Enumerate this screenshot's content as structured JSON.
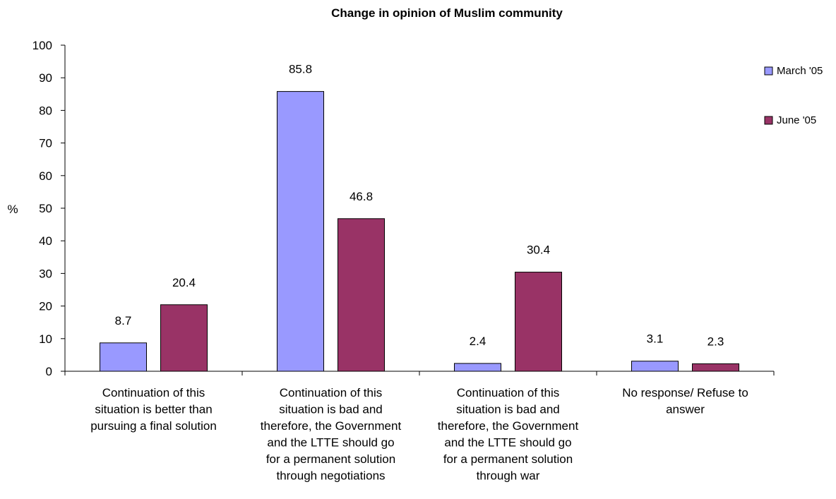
{
  "chart_data": {
    "type": "bar",
    "title": "Change in opinion of Muslim community",
    "ylabel": "%",
    "xlabel": "",
    "ylim": [
      0,
      100
    ],
    "yticks": [
      0,
      10,
      20,
      30,
      40,
      50,
      60,
      70,
      80,
      90,
      100
    ],
    "categories": [
      "Continuation of this situation is better than pursuing a final solution",
      "Continuation of this situation is bad and therefore, the Government and the LTTE should go for a permanent solution through negotiations",
      "Continuation of this situation is bad and therefore, the Government and the LTTE should go for a permanent solution through war",
      "No response/ Refuse to answer"
    ],
    "category_lines": [
      [
        "Continuation of this",
        "situation is better than",
        "pursuing a final solution"
      ],
      [
        "Continuation of this",
        "situation is bad and",
        "therefore, the Government",
        "and the LTTE should go",
        "for a permanent solution",
        "through negotiations"
      ],
      [
        "Continuation of this",
        "situation is bad and",
        "therefore, the Government",
        "and the LTTE should go",
        "for a permanent solution",
        "through war"
      ],
      [
        "No response/ Refuse to",
        "answer"
      ]
    ],
    "series": [
      {
        "name": "March '05",
        "values": [
          8.7,
          85.8,
          2.4,
          3.1
        ],
        "color": "#9999ff"
      },
      {
        "name": "June '05",
        "values": [
          20.4,
          46.8,
          30.4,
          2.3
        ],
        "color": "#993366"
      }
    ],
    "legend_position": "right",
    "grid": false
  }
}
